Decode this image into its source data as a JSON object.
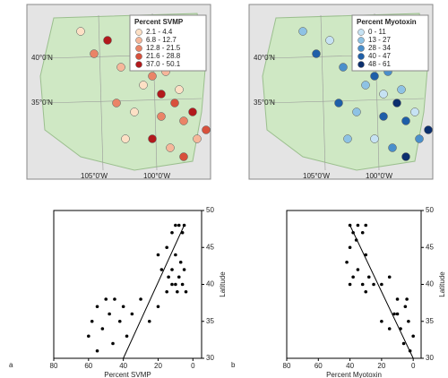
{
  "panels": [
    {
      "label": "a",
      "legend_title": "Percent SVMP",
      "legend_items": [
        "2.1 - 4.4",
        "6.8 - 12.7",
        "12.8 - 21.5",
        "21.6 - 28.8",
        "37.0 - 50.1"
      ],
      "legend_colors": [
        "#fde0c5",
        "#f6b79a",
        "#ea8467",
        "#d8503c",
        "#b2191c"
      ],
      "map_labels": [
        "40°0'N",
        "35°0'N",
        "105°0'W",
        "100°0'W"
      ]
    },
    {
      "label": "b",
      "legend_title": "Percent Myotoxin",
      "legend_items": [
        "0 - 11",
        "13 - 27",
        "28 - 34",
        "40 - 47",
        "48 - 61"
      ],
      "legend_colors": [
        "#c6e2f3",
        "#8ec2e4",
        "#4a8fcb",
        "#1f5fa8",
        "#0c2f6e"
      ],
      "map_labels": [
        "40°0'N",
        "35°0'N",
        "105°0'W",
        "100°0'W"
      ]
    }
  ],
  "chart_data": [
    {
      "type": "scatter",
      "xlabel": "Percent SVMP",
      "ylabel": "Latitude",
      "color": "#000",
      "xlim": [
        80,
        -5
      ],
      "ylim": [
        30,
        50
      ],
      "xticks": [
        80,
        60,
        40,
        20,
        0
      ],
      "yticks": [
        30,
        35,
        40,
        45,
        50
      ],
      "series": [
        {
          "name": null,
          "x": [
            10,
            8,
            5,
            12,
            6,
            15,
            10,
            7,
            12,
            5,
            8,
            14,
            10,
            6,
            12,
            4,
            9,
            15,
            18,
            20,
            45,
            50,
            55,
            40,
            48,
            58,
            42,
            52,
            60,
            38,
            46,
            55,
            35,
            30,
            25,
            20
          ],
          "values": [
            48,
            48,
            48,
            47,
            47,
            45,
            44,
            43,
            42,
            42,
            41,
            41,
            40,
            40,
            40,
            39,
            39,
            39,
            42,
            44,
            38,
            38,
            37,
            37,
            36,
            35,
            35,
            34,
            33,
            33,
            32,
            31,
            36,
            38,
            35,
            37
          ]
        }
      ],
      "trend": {
        "x": [
          40,
          5
        ],
        "values": [
          30,
          48
        ]
      }
    },
    {
      "type": "scatter",
      "xlabel": "Percent Myotoxin",
      "ylabel": "Latitude",
      "color": "#000",
      "xlim": [
        80,
        -5
      ],
      "ylim": [
        30,
        50
      ],
      "xticks": [
        80,
        60,
        40,
        20,
        0
      ],
      "yticks": [
        30,
        35,
        40,
        45,
        50
      ],
      "series": [
        {
          "name": null,
          "x": [
            40,
            35,
            30,
            38,
            32,
            36,
            40,
            30,
            42,
            35,
            28,
            38,
            32,
            25,
            40,
            20,
            30,
            15,
            10,
            5,
            12,
            3,
            8,
            0,
            6,
            15,
            2,
            10,
            20,
            4
          ],
          "values": [
            48,
            48,
            48,
            47,
            47,
            46,
            45,
            44,
            43,
            42,
            41,
            41,
            40,
            40,
            40,
            40,
            39,
            41,
            38,
            37,
            36,
            35,
            34,
            33,
            32,
            34,
            31,
            36,
            35,
            38
          ]
        }
      ],
      "trend": {
        "x": [
          40,
          0
        ],
        "values": [
          48,
          30
        ]
      }
    }
  ]
}
